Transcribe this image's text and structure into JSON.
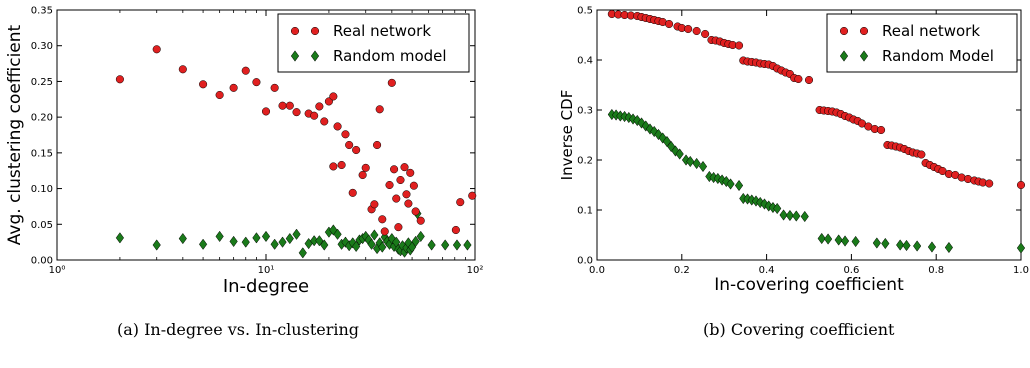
{
  "captions": {
    "left": "(a) In-degree vs. In-clustering",
    "right": "(b) Covering coefficient"
  },
  "colors": {
    "real": "#e02020",
    "random": "#1a7a1a"
  },
  "chart_data": [
    {
      "type": "scatter",
      "xscale": "log",
      "xlim": [
        1,
        100
      ],
      "ylim": [
        0,
        0.35
      ],
      "xlabel": "In-degree",
      "ylabel": "Avg. clustering coefficient",
      "xticks": [
        1,
        10,
        100
      ],
      "xticklabels": [
        "10⁰",
        "10¹",
        "10²"
      ],
      "yticks": [
        0,
        0.05,
        0.1,
        0.15,
        0.2,
        0.25,
        0.3,
        0.35
      ],
      "yticklabels": [
        "0.00",
        "0.05",
        "0.10",
        "0.15",
        "0.20",
        "0.25",
        "0.30",
        "0.35"
      ],
      "legend": "top-right",
      "series": [
        {
          "name": "Real network",
          "marker": "circle",
          "points": [
            [
              2,
              0.253
            ],
            [
              3,
              0.295
            ],
            [
              4,
              0.267
            ],
            [
              5,
              0.246
            ],
            [
              6,
              0.231
            ],
            [
              7,
              0.241
            ],
            [
              8,
              0.265
            ],
            [
              9,
              0.249
            ],
            [
              10,
              0.208
            ],
            [
              11,
              0.241
            ],
            [
              12,
              0.216
            ],
            [
              13,
              0.216
            ],
            [
              14,
              0.207
            ],
            [
              16,
              0.205
            ],
            [
              17,
              0.202
            ],
            [
              18,
              0.215
            ],
            [
              19,
              0.194
            ],
            [
              20,
              0.222
            ],
            [
              21,
              0.229
            ],
            [
              21,
              0.131
            ],
            [
              22,
              0.187
            ],
            [
              23,
              0.133
            ],
            [
              24,
              0.176
            ],
            [
              25,
              0.161
            ],
            [
              26,
              0.094
            ],
            [
              27,
              0.154
            ],
            [
              29,
              0.119
            ],
            [
              30,
              0.129
            ],
            [
              31,
              0.336
            ],
            [
              32,
              0.071
            ],
            [
              33,
              0.078
            ],
            [
              34,
              0.161
            ],
            [
              35,
              0.211
            ],
            [
              36,
              0.057
            ],
            [
              37,
              0.04
            ],
            [
              39,
              0.105
            ],
            [
              40,
              0.248
            ],
            [
              41,
              0.127
            ],
            [
              42,
              0.086
            ],
            [
              43,
              0.046
            ],
            [
              44,
              0.112
            ],
            [
              45,
              0.326
            ],
            [
              46,
              0.13
            ],
            [
              47,
              0.092
            ],
            [
              48,
              0.079
            ],
            [
              49,
              0.122
            ],
            [
              51,
              0.104
            ],
            [
              52,
              0.068
            ],
            [
              55,
              0.055
            ],
            [
              81,
              0.042
            ],
            [
              85,
              0.081
            ],
            [
              97,
              0.09
            ]
          ]
        },
        {
          "name": "Random model",
          "marker": "diamond",
          "points": [
            [
              2,
              0.031
            ],
            [
              3,
              0.021
            ],
            [
              4,
              0.03
            ],
            [
              5,
              0.022
            ],
            [
              6,
              0.033
            ],
            [
              7,
              0.026
            ],
            [
              8,
              0.025
            ],
            [
              9,
              0.031
            ],
            [
              10,
              0.033
            ],
            [
              11,
              0.022
            ],
            [
              12,
              0.025
            ],
            [
              13,
              0.03
            ],
            [
              14,
              0.036
            ],
            [
              15,
              0.01
            ],
            [
              16,
              0.023
            ],
            [
              17,
              0.027
            ],
            [
              18,
              0.027
            ],
            [
              19,
              0.021
            ],
            [
              20,
              0.039
            ],
            [
              21,
              0.042
            ],
            [
              22,
              0.036
            ],
            [
              23,
              0.022
            ],
            [
              24,
              0.025
            ],
            [
              25,
              0.02
            ],
            [
              26,
              0.024
            ],
            [
              27,
              0.019
            ],
            [
              28,
              0.028
            ],
            [
              29,
              0.03
            ],
            [
              30,
              0.033
            ],
            [
              31,
              0.028
            ],
            [
              32,
              0.022
            ],
            [
              33,
              0.035
            ],
            [
              34,
              0.016
            ],
            [
              35,
              0.024
            ],
            [
              36,
              0.018
            ],
            [
              37,
              0.032
            ],
            [
              38,
              0.026
            ],
            [
              39,
              0.022
            ],
            [
              40,
              0.03
            ],
            [
              41,
              0.019
            ],
            [
              42,
              0.025
            ],
            [
              43,
              0.015
            ],
            [
              44,
              0.013
            ],
            [
              45,
              0.02
            ],
            [
              46,
              0.011
            ],
            [
              47,
              0.017
            ],
            [
              48,
              0.024
            ],
            [
              49,
              0.014
            ],
            [
              50,
              0.018
            ],
            [
              52,
              0.026
            ],
            [
              53,
              0.065
            ],
            [
              55,
              0.033
            ],
            [
              62,
              0.021
            ],
            [
              72,
              0.021
            ],
            [
              82,
              0.021
            ],
            [
              92,
              0.021
            ]
          ]
        }
      ]
    },
    {
      "type": "scatter",
      "xlim": [
        0,
        1
      ],
      "ylim": [
        0,
        0.5
      ],
      "xlabel": "In-covering coefficient",
      "ylabel": "Inverse CDF",
      "xticks": [
        0,
        0.2,
        0.4,
        0.6,
        0.8,
        1.0
      ],
      "xticklabels": [
        "0.0",
        "0.2",
        "0.4",
        "0.6",
        "0.8",
        "1.0"
      ],
      "yticks": [
        0,
        0.1,
        0.2,
        0.3,
        0.4,
        0.5
      ],
      "yticklabels": [
        "0.0",
        "0.1",
        "0.2",
        "0.3",
        "0.4",
        "0.5"
      ],
      "legend": "top-right",
      "series": [
        {
          "name": "Real network",
          "marker": "circle",
          "points": [
            [
              0.035,
              0.492
            ],
            [
              0.05,
              0.491
            ],
            [
              0.065,
              0.49
            ],
            [
              0.08,
              0.489
            ],
            [
              0.095,
              0.488
            ],
            [
              0.105,
              0.486
            ],
            [
              0.115,
              0.484
            ],
            [
              0.125,
              0.482
            ],
            [
              0.135,
              0.48
            ],
            [
              0.145,
              0.478
            ],
            [
              0.155,
              0.476
            ],
            [
              0.17,
              0.472
            ],
            [
              0.19,
              0.467
            ],
            [
              0.2,
              0.464
            ],
            [
              0.215,
              0.462
            ],
            [
              0.235,
              0.458
            ],
            [
              0.255,
              0.452
            ],
            [
              0.27,
              0.44
            ],
            [
              0.28,
              0.439
            ],
            [
              0.29,
              0.437
            ],
            [
              0.3,
              0.434
            ],
            [
              0.31,
              0.432
            ],
            [
              0.32,
              0.43
            ],
            [
              0.335,
              0.429
            ],
            [
              0.345,
              0.399
            ],
            [
              0.355,
              0.397
            ],
            [
              0.365,
              0.396
            ],
            [
              0.375,
              0.395
            ],
            [
              0.385,
              0.393
            ],
            [
              0.395,
              0.392
            ],
            [
              0.405,
              0.391
            ],
            [
              0.415,
              0.388
            ],
            [
              0.425,
              0.383
            ],
            [
              0.435,
              0.379
            ],
            [
              0.445,
              0.375
            ],
            [
              0.455,
              0.372
            ],
            [
              0.465,
              0.364
            ],
            [
              0.475,
              0.362
            ],
            [
              0.5,
              0.36
            ],
            [
              0.525,
              0.3
            ],
            [
              0.535,
              0.299
            ],
            [
              0.545,
              0.298
            ],
            [
              0.555,
              0.297
            ],
            [
              0.565,
              0.295
            ],
            [
              0.575,
              0.292
            ],
            [
              0.585,
              0.288
            ],
            [
              0.595,
              0.285
            ],
            [
              0.605,
              0.281
            ],
            [
              0.615,
              0.278
            ],
            [
              0.625,
              0.273
            ],
            [
              0.64,
              0.267
            ],
            [
              0.655,
              0.262
            ],
            [
              0.67,
              0.26
            ],
            [
              0.685,
              0.23
            ],
            [
              0.695,
              0.229
            ],
            [
              0.705,
              0.227
            ],
            [
              0.715,
              0.225
            ],
            [
              0.725,
              0.222
            ],
            [
              0.735,
              0.218
            ],
            [
              0.745,
              0.215
            ],
            [
              0.755,
              0.213
            ],
            [
              0.765,
              0.211
            ],
            [
              0.775,
              0.194
            ],
            [
              0.785,
              0.19
            ],
            [
              0.795,
              0.186
            ],
            [
              0.805,
              0.182
            ],
            [
              0.815,
              0.178
            ],
            [
              0.83,
              0.172
            ],
            [
              0.845,
              0.17
            ],
            [
              0.86,
              0.165
            ],
            [
              0.875,
              0.162
            ],
            [
              0.89,
              0.159
            ],
            [
              0.9,
              0.157
            ],
            [
              0.91,
              0.155
            ],
            [
              0.925,
              0.153
            ],
            [
              1.0,
              0.15
            ]
          ]
        },
        {
          "name": "Random Model",
          "marker": "diamond",
          "points": [
            [
              0.035,
              0.291
            ],
            [
              0.045,
              0.29
            ],
            [
              0.055,
              0.288
            ],
            [
              0.065,
              0.287
            ],
            [
              0.075,
              0.285
            ],
            [
              0.085,
              0.282
            ],
            [
              0.095,
              0.279
            ],
            [
              0.105,
              0.274
            ],
            [
              0.115,
              0.268
            ],
            [
              0.125,
              0.262
            ],
            [
              0.135,
              0.257
            ],
            [
              0.145,
              0.251
            ],
            [
              0.155,
              0.244
            ],
            [
              0.165,
              0.237
            ],
            [
              0.175,
              0.227
            ],
            [
              0.185,
              0.218
            ],
            [
              0.195,
              0.212
            ],
            [
              0.21,
              0.2
            ],
            [
              0.22,
              0.197
            ],
            [
              0.235,
              0.193
            ],
            [
              0.25,
              0.187
            ],
            [
              0.265,
              0.167
            ],
            [
              0.275,
              0.165
            ],
            [
              0.285,
              0.163
            ],
            [
              0.295,
              0.16
            ],
            [
              0.305,
              0.157
            ],
            [
              0.315,
              0.152
            ],
            [
              0.335,
              0.149
            ],
            [
              0.345,
              0.123
            ],
            [
              0.355,
              0.122
            ],
            [
              0.365,
              0.12
            ],
            [
              0.375,
              0.118
            ],
            [
              0.385,
              0.115
            ],
            [
              0.395,
              0.112
            ],
            [
              0.405,
              0.108
            ],
            [
              0.415,
              0.105
            ],
            [
              0.425,
              0.103
            ],
            [
              0.44,
              0.09
            ],
            [
              0.455,
              0.089
            ],
            [
              0.47,
              0.088
            ],
            [
              0.49,
              0.087
            ],
            [
              0.53,
              0.043
            ],
            [
              0.545,
              0.042
            ],
            [
              0.57,
              0.04
            ],
            [
              0.585,
              0.038
            ],
            [
              0.61,
              0.037
            ],
            [
              0.66,
              0.034
            ],
            [
              0.68,
              0.033
            ],
            [
              0.715,
              0.03
            ],
            [
              0.73,
              0.029
            ],
            [
              0.755,
              0.028
            ],
            [
              0.79,
              0.026
            ],
            [
              0.83,
              0.025
            ],
            [
              1.0,
              0.024
            ]
          ]
        }
      ]
    }
  ]
}
